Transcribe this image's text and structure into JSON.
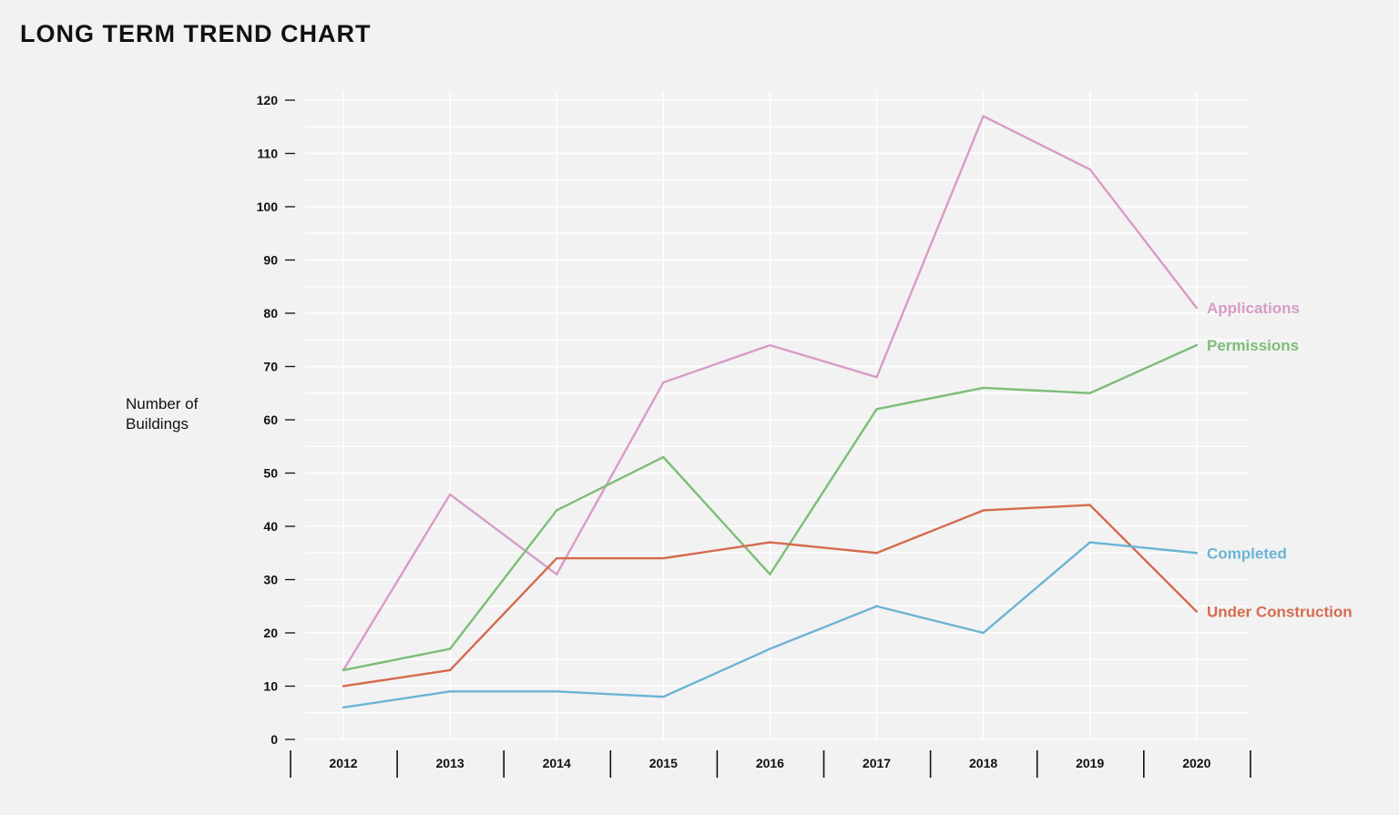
{
  "title": "LONG TERM TREND CHART",
  "chart_data": {
    "type": "line",
    "title": "LONG TERM TREND CHART",
    "ylabel": "Number of Buildings",
    "xlabel": "",
    "categories": [
      "2012",
      "2013",
      "2014",
      "2015",
      "2016",
      "2017",
      "2018",
      "2019",
      "2020"
    ],
    "ylim": [
      0,
      120
    ],
    "yticks": [
      0,
      10,
      20,
      30,
      40,
      50,
      60,
      70,
      80,
      90,
      100,
      110,
      120
    ],
    "grid": true,
    "legend": "direct labels at right end of lines",
    "series": [
      {
        "name": "Applications",
        "color": "#d89cc6",
        "values": [
          13,
          46,
          31,
          67,
          74,
          68,
          117,
          107,
          81
        ]
      },
      {
        "name": "Permissions",
        "color": "#7dbd78",
        "values": [
          13,
          17,
          43,
          53,
          31,
          62,
          66,
          65,
          74
        ]
      },
      {
        "name": "Under Construction",
        "color": "#d56b4e",
        "values": [
          10,
          13,
          34,
          34,
          37,
          35,
          43,
          44,
          24
        ]
      },
      {
        "name": "Completed",
        "color": "#6bb4d4",
        "values": [
          6,
          9,
          9,
          8,
          17,
          25,
          20,
          37,
          35
        ]
      }
    ]
  }
}
